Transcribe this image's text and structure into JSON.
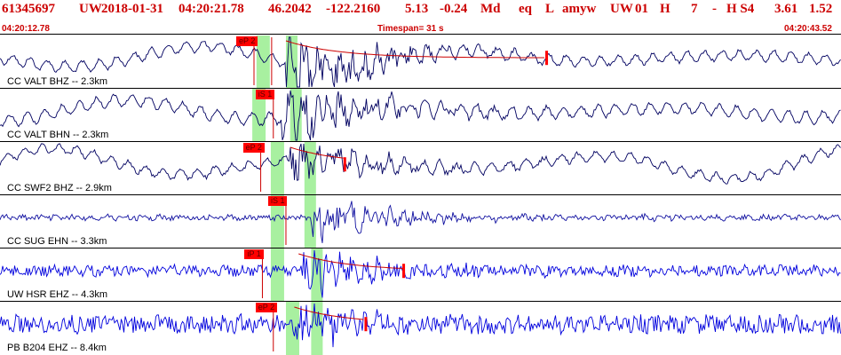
{
  "header": {
    "event_id": "61345697",
    "network": "UW",
    "date": "2018-01-31",
    "time": "04:20:21.78",
    "lat": "46.2042",
    "lon": "-122.2160",
    "depth": "5.13",
    "magnitude": "-0.24",
    "mag_type": "Md",
    "event_type": "eq",
    "status": "L",
    "author": "amyw",
    "region": "UW",
    "code1": "01",
    "code2": "H",
    "code3": "7",
    "code4": "-",
    "code5": "H S4",
    "val1": "3.61",
    "val2": "1.52"
  },
  "subheader": {
    "start_time": "04:20:12.78",
    "timespan": "Timespan=  31 s",
    "end_time": "04:20:43.52"
  },
  "traces": [
    {
      "label": "CC VALT BHZ -- 2.3km",
      "color": "#000060",
      "amp": 14,
      "noise": 2,
      "slow": 13,
      "onset": 0.34,
      "burst": 34,
      "phases": [
        {
          "tag": "eP 2",
          "x": 0.302
        },
        {
          "tag": "",
          "x": 0.323
        }
      ],
      "green": [
        0.305,
        0.34
      ],
      "coda": true,
      "marker": 0.65
    },
    {
      "label": "CC VALT BHN -- 2.3km",
      "color": "#000060",
      "amp": 16,
      "noise": 2,
      "slow": 12,
      "onset": 0.335,
      "burst": 30,
      "phases": [
        {
          "tag": "iS 1",
          "x": 0.325
        }
      ],
      "green": [
        0.3,
        0.345
      ],
      "coda": false,
      "marker": null
    },
    {
      "label": "CC SWF2 BHZ -- 2.9km",
      "color": "#000060",
      "amp": 13,
      "noise": 2,
      "slow": 20,
      "onset": 0.345,
      "burst": 20,
      "phases": [
        {
          "tag": "eP 2",
          "x": 0.31
        }
      ],
      "green": [
        0.322,
        0.362
      ],
      "coda": true,
      "marker": 0.41
    },
    {
      "label": "CC SUG EHN -- 3.3km",
      "color": "#1010a0",
      "amp": 3,
      "noise": 3,
      "slow": 0,
      "onset": 0.37,
      "burst": 22,
      "phases": [
        {
          "tag": "iS 1",
          "x": 0.34
        }
      ],
      "green": [
        0.322,
        0.362
      ],
      "coda": false,
      "marker": null
    },
    {
      "label": "UW HSR EHZ -- 4.3km",
      "color": "#0000dd",
      "amp": 3,
      "noise": 6,
      "slow": 0,
      "onset": 0.355,
      "burst": 22,
      "phases": [
        {
          "tag": "iP 1",
          "x": 0.312
        }
      ],
      "green": [
        0.322,
        0.37
      ],
      "coda": true,
      "marker": 0.48
    },
    {
      "label": "PB B204 EHZ -- 8.4km",
      "color": "#0000dd",
      "amp": 4,
      "noise": 10,
      "slow": 0,
      "onset": 0.35,
      "burst": 18,
      "phases": [
        {
          "tag": "eP 2",
          "x": 0.325
        }
      ],
      "green": [
        0.34,
        0.37
      ],
      "coda": true,
      "marker": 0.435
    }
  ]
}
